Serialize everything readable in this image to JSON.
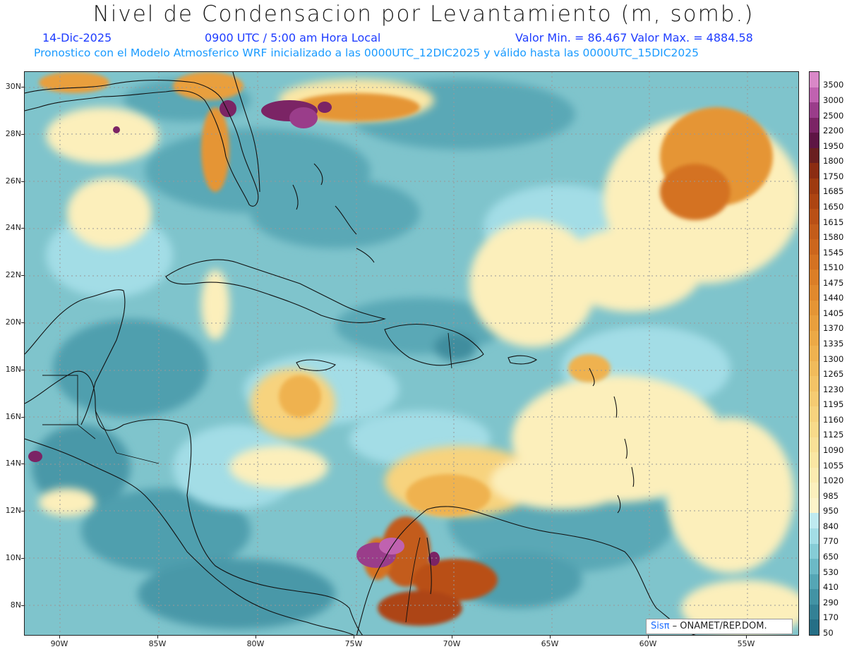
{
  "header": {
    "title": "Nivel de Condensacion por Levantamiento (m, somb.)",
    "date": "14-Dic-2025",
    "time": "0900 UTC / 5:00 am Hora Local",
    "min_max": "Valor Min. = 86.467   Valor Max. = 4884.58",
    "model_info": "Pronostico con el Modelo Atmosferico WRF inicializado a las 0000UTC_12DIC2025 y válido hasta las  0000UTC_15DIC2025"
  },
  "map": {
    "lat_labels": [
      "30N",
      "28N",
      "26N",
      "24N",
      "22N",
      "20N",
      "18N",
      "16N",
      "14N",
      "12N",
      "10N",
      "8N"
    ],
    "lon_labels": [
      "90W",
      "85W",
      "80W",
      "75W",
      "70W",
      "65W",
      "60W",
      "55W"
    ],
    "base_color": "#7fc4cc"
  },
  "legend": {
    "labels": [
      "3500",
      "3000",
      "2500",
      "2200",
      "1950",
      "1800",
      "1750",
      "1685",
      "1650",
      "1615",
      "1580",
      "1545",
      "1510",
      "1475",
      "1440",
      "1405",
      "1370",
      "1335",
      "1300",
      "1265",
      "1230",
      "1195",
      "1160",
      "1125",
      "1090",
      "1055",
      "1020",
      "985",
      "950",
      "840",
      "770",
      "650",
      "530",
      "410",
      "290",
      "170",
      "50"
    ],
    "colors": [
      "#d988c8",
      "#c062b0",
      "#9a3d8a",
      "#7b2465",
      "#5e1544",
      "#6a1f20",
      "#8b2c12",
      "#9e3a10",
      "#ad4512",
      "#b95016",
      "#c35c1a",
      "#cc661d",
      "#d47222",
      "#db7e27",
      "#e0892d",
      "#e59535",
      "#e99f3d",
      "#eca946",
      "#efb250",
      "#f1bb5b",
      "#f3c366",
      "#f5cb72",
      "#f7d37e",
      "#f8da8a",
      "#f9e097",
      "#fae6a3",
      "#fbebb0",
      "#fcf0bd",
      "#fdf4c9",
      "#bfeaf0",
      "#a3dde6",
      "#86ccd6",
      "#6cb9c6",
      "#55a6b5",
      "#4293a4",
      "#338195",
      "#256f86"
    ]
  },
  "credit": {
    "sis": "Sisπ",
    "org": "– ONAMET/REP.DOM."
  }
}
